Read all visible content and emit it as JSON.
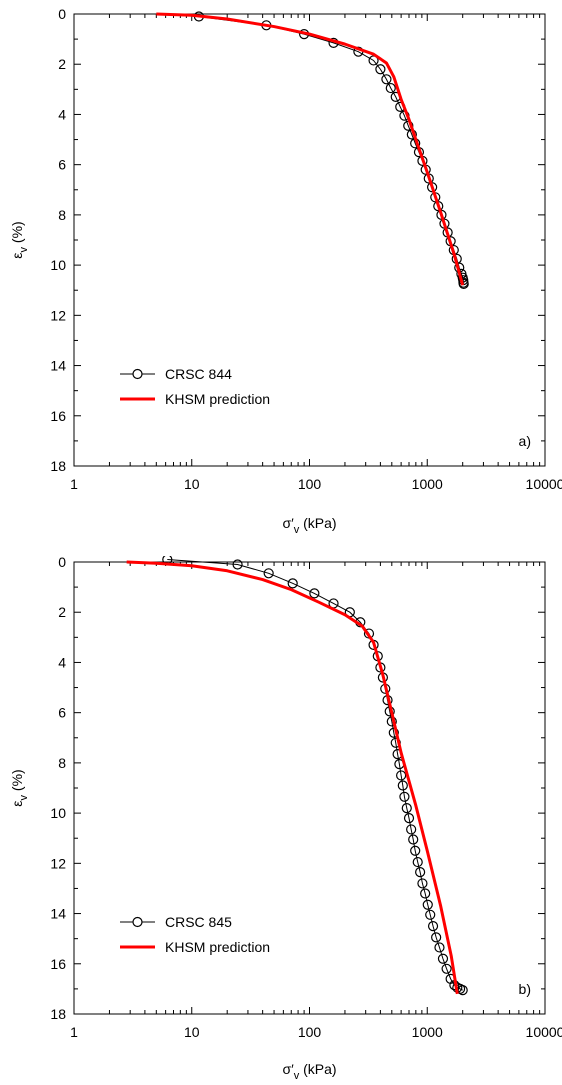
{
  "chart_data": [
    {
      "type": "scatter",
      "panel_label": "a)",
      "xlabel": {
        "main": "σ′",
        "sub": "v",
        "unit": " (kPa)"
      },
      "ylabel": {
        "main": "ε",
        "sub": "v",
        "unit": " (%)"
      },
      "x_scale": "log",
      "xlim": [
        1,
        10000
      ],
      "ylim": [
        0,
        18
      ],
      "y_inverted": true,
      "x_ticks": [
        "1",
        "10",
        "100",
        "1000",
        "10000"
      ],
      "y_ticks": [
        "0",
        "2",
        "4",
        "6",
        "8",
        "10",
        "12",
        "14",
        "16",
        "18"
      ],
      "legend_position": "bottom-left",
      "series": [
        {
          "name": "CRSC 844",
          "style": "line-open-circles",
          "color": "#000000",
          "points": [
            [
              11.5,
              0.1
            ],
            [
              43,
              0.45
            ],
            [
              90,
              0.8
            ],
            [
              160,
              1.15
            ],
            [
              260,
              1.5
            ],
            [
              350,
              1.85
            ],
            [
              400,
              2.2
            ],
            [
              450,
              2.6
            ],
            [
              490,
              2.95
            ],
            [
              540,
              3.3
            ],
            [
              590,
              3.7
            ],
            [
              640,
              4.05
            ],
            [
              690,
              4.45
            ],
            [
              740,
              4.8
            ],
            [
              790,
              5.15
            ],
            [
              850,
              5.5
            ],
            [
              910,
              5.85
            ],
            [
              970,
              6.2
            ],
            [
              1030,
              6.55
            ],
            [
              1100,
              6.9
            ],
            [
              1170,
              7.3
            ],
            [
              1240,
              7.65
            ],
            [
              1320,
              8.0
            ],
            [
              1400,
              8.35
            ],
            [
              1490,
              8.7
            ],
            [
              1580,
              9.05
            ],
            [
              1680,
              9.4
            ],
            [
              1780,
              9.75
            ],
            [
              1870,
              10.1
            ],
            [
              1950,
              10.35
            ],
            [
              2000,
              10.5
            ],
            [
              2020,
              10.6
            ],
            [
              2030,
              10.7
            ],
            [
              2040,
              10.75
            ]
          ]
        },
        {
          "name": "KHSM prediction",
          "style": "line",
          "color": "#ff0000",
          "points": [
            [
              5,
              0.0
            ],
            [
              10,
              0.05
            ],
            [
              20,
              0.2
            ],
            [
              50,
              0.5
            ],
            [
              100,
              0.8
            ],
            [
              200,
              1.2
            ],
            [
              350,
              1.6
            ],
            [
              450,
              1.95
            ],
            [
              520,
              2.5
            ],
            [
              600,
              3.4
            ],
            [
              700,
              4.2
            ],
            [
              800,
              5.0
            ],
            [
              1000,
              6.3
            ],
            [
              1300,
              7.9
            ],
            [
              1700,
              9.6
            ],
            [
              2000,
              10.8
            ]
          ]
        }
      ]
    },
    {
      "type": "scatter",
      "panel_label": "b)",
      "xlabel": {
        "main": "σ′",
        "sub": "v",
        "unit": " (kPa)"
      },
      "ylabel": {
        "main": "ε",
        "sub": "v",
        "unit": " (%)"
      },
      "x_scale": "log",
      "xlim": [
        1,
        10000
      ],
      "ylim": [
        0,
        18
      ],
      "y_inverted": true,
      "x_ticks": [
        "1",
        "10",
        "100",
        "1000",
        "10000"
      ],
      "y_ticks": [
        "0",
        "2",
        "4",
        "6",
        "8",
        "10",
        "12",
        "14",
        "16",
        "18"
      ],
      "legend_position": "bottom-left",
      "series": [
        {
          "name": "CRSC 845",
          "style": "line-open-circles",
          "color": "#000000",
          "points": [
            [
              6.2,
              -0.1
            ],
            [
              24.5,
              0.1
            ],
            [
              45,
              0.45
            ],
            [
              72,
              0.85
            ],
            [
              110,
              1.25
            ],
            [
              160,
              1.65
            ],
            [
              220,
              2.0
            ],
            [
              270,
              2.4
            ],
            [
              320,
              2.85
            ],
            [
              350,
              3.3
            ],
            [
              380,
              3.75
            ],
            [
              400,
              4.2
            ],
            [
              420,
              4.6
            ],
            [
              440,
              5.05
            ],
            [
              460,
              5.5
            ],
            [
              480,
              5.95
            ],
            [
              500,
              6.35
            ],
            [
              520,
              6.8
            ],
            [
              540,
              7.2
            ],
            [
              560,
              7.65
            ],
            [
              580,
              8.05
            ],
            [
              600,
              8.5
            ],
            [
              620,
              8.9
            ],
            [
              640,
              9.35
            ],
            [
              670,
              9.8
            ],
            [
              700,
              10.2
            ],
            [
              730,
              10.65
            ],
            [
              760,
              11.05
            ],
            [
              790,
              11.5
            ],
            [
              830,
              11.95
            ],
            [
              870,
              12.35
            ],
            [
              910,
              12.8
            ],
            [
              960,
              13.2
            ],
            [
              1010,
              13.65
            ],
            [
              1060,
              14.05
            ],
            [
              1120,
              14.5
            ],
            [
              1190,
              14.95
            ],
            [
              1270,
              15.35
            ],
            [
              1360,
              15.8
            ],
            [
              1460,
              16.2
            ],
            [
              1580,
              16.6
            ],
            [
              1700,
              16.85
            ],
            [
              1800,
              16.95
            ],
            [
              1900,
              17.0
            ],
            [
              2000,
              17.05
            ]
          ]
        },
        {
          "name": "KHSM prediction",
          "style": "line",
          "color": "#ff0000",
          "points": [
            [
              2.8,
              0.0
            ],
            [
              5,
              0.05
            ],
            [
              10,
              0.15
            ],
            [
              20,
              0.35
            ],
            [
              40,
              0.7
            ],
            [
              70,
              1.1
            ],
            [
              120,
              1.6
            ],
            [
              200,
              2.1
            ],
            [
              280,
              2.55
            ],
            [
              350,
              3.2
            ],
            [
              420,
              4.5
            ],
            [
              500,
              6.0
            ],
            [
              600,
              7.6
            ],
            [
              800,
              9.7
            ],
            [
              1000,
              11.5
            ],
            [
              1300,
              13.7
            ],
            [
              1600,
              15.7
            ],
            [
              1800,
              17.2
            ]
          ]
        }
      ]
    }
  ]
}
